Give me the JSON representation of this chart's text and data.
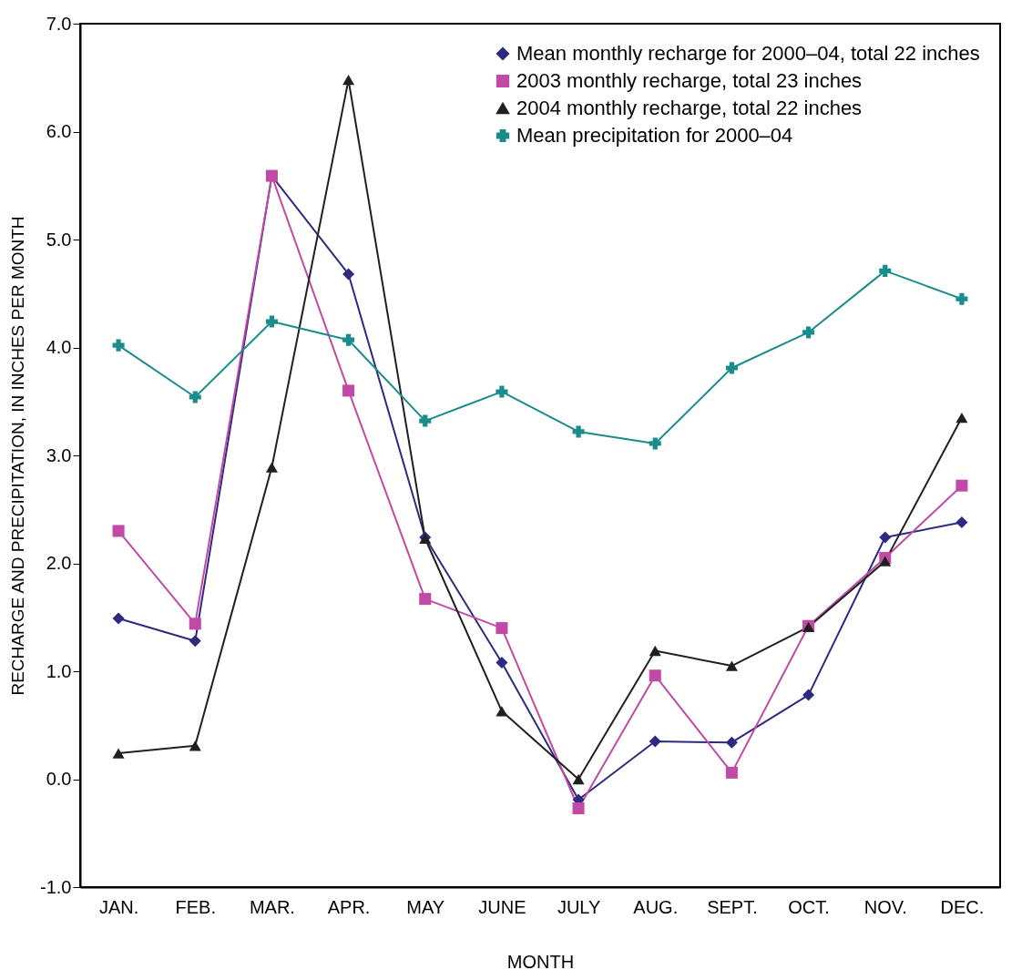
{
  "chart_data": {
    "type": "line",
    "xlabel": "MONTH",
    "ylabel": "RECHARGE AND PRECIPITATION, IN INCHES PER MONTH",
    "categories": [
      "JAN.",
      "FEB.",
      "MAR.",
      "APR.",
      "MAY",
      "JUNE",
      "JULY",
      "AUG.",
      "SEPT.",
      "OCT.",
      "NOV.",
      "DEC."
    ],
    "series": [
      {
        "name": "Mean monthly recharge for 2000–04, total 22 inches",
        "color": "#2e2a7f",
        "marker": "diamond",
        "values": [
          1.49,
          1.28,
          5.59,
          4.68,
          2.24,
          1.08,
          -0.19,
          0.35,
          0.34,
          0.78,
          2.24,
          2.38
        ]
      },
      {
        "name": "2003 monthly recharge, total 23 inches",
        "color": "#c04aa6",
        "marker": "square",
        "values": [
          2.3,
          1.44,
          5.59,
          3.6,
          1.67,
          1.4,
          -0.27,
          0.96,
          0.06,
          1.42,
          2.05,
          2.72
        ]
      },
      {
        "name": "2004 monthly recharge, total 22 inches",
        "color": "#231f20",
        "marker": "triangle",
        "values": [
          0.24,
          0.31,
          2.89,
          6.48,
          2.23,
          0.63,
          0.0,
          1.19,
          1.05,
          1.41,
          2.02,
          3.35
        ]
      },
      {
        "name": "Mean precipitation for 2000–04",
        "color": "#1a8c8c",
        "marker": "cross",
        "values": [
          4.02,
          3.54,
          4.24,
          4.07,
          3.32,
          3.59,
          3.22,
          3.11,
          3.81,
          4.14,
          4.71,
          4.45
        ]
      }
    ],
    "ylim": [
      -1,
      7
    ],
    "yticks": [
      {
        "value": -1,
        "label": "-1.0"
      },
      {
        "value": 0,
        "label": "0.0"
      },
      {
        "value": 1,
        "label": "1.0"
      },
      {
        "value": 2,
        "label": "2.0"
      },
      {
        "value": 3,
        "label": "3.0"
      },
      {
        "value": 4,
        "label": "4.0"
      },
      {
        "value": 5,
        "label": "5.0"
      },
      {
        "value": 6,
        "label": "6.0"
      },
      {
        "value": 7,
        "label": "7.0"
      }
    ],
    "grid": false,
    "legend": "top right",
    "line_style": "solid"
  }
}
